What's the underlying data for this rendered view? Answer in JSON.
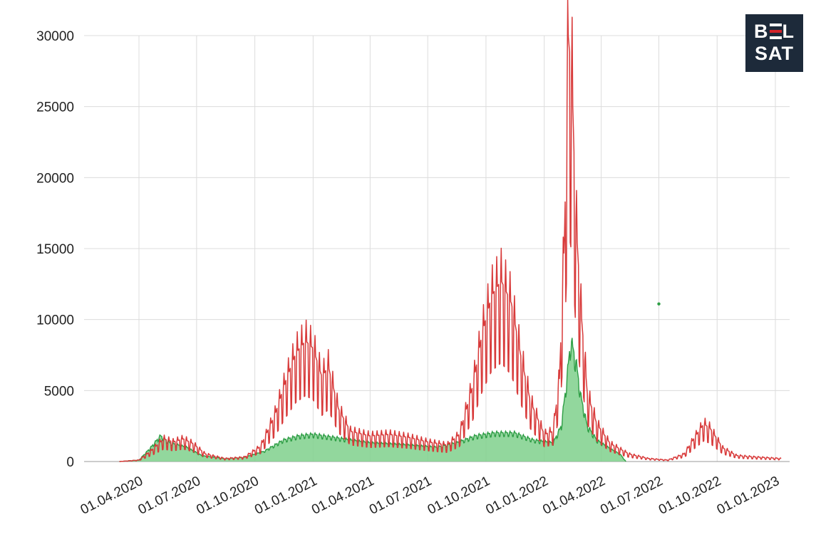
{
  "colors": {
    "red_series": "#d83a3a",
    "green_series": "#2e9e45",
    "green_fill": "#7fd08c",
    "grid": "#dcdcdc",
    "logo_bg": "#1d2a3a",
    "logo_accent": "#d2232a"
  },
  "logo": {
    "line1": "BELSAT",
    "line1_left": "B",
    "line1_right": "L",
    "line2": "SAT"
  },
  "chart_data": {
    "type": "area",
    "title": "",
    "xlabel": "",
    "ylabel": "",
    "ylim": [
      0,
      30000
    ],
    "yticks": [
      0,
      5000,
      10000,
      15000,
      20000,
      25000,
      30000
    ],
    "xticks": [
      "01.04.2020",
      "01.07.2020",
      "01.10.2020",
      "01.01.2021",
      "01.04.2021",
      "01.07.2021",
      "01.10.2021",
      "01.01.2022",
      "01.04.2022",
      "01.07.2022",
      "01.10.2022",
      "01.01.2023"
    ],
    "grid": true,
    "legend": "none",
    "series": [
      {
        "type": "line",
        "color": "#d83a3a",
        "points": [
          [
            "2020-03-01",
            0
          ],
          [
            "2020-04-01",
            100
          ],
          [
            "2020-04-20",
            700
          ],
          [
            "2020-05-10",
            1500
          ],
          [
            "2020-05-25",
            1300
          ],
          [
            "2020-06-10",
            1500
          ],
          [
            "2020-06-25",
            1200
          ],
          [
            "2020-07-15",
            500
          ],
          [
            "2020-08-15",
            200
          ],
          [
            "2020-09-15",
            300
          ],
          [
            "2020-10-10",
            1000
          ],
          [
            "2020-11-01",
            3000
          ],
          [
            "2020-11-20",
            5500
          ],
          [
            "2020-12-05",
            7200
          ],
          [
            "2020-12-20",
            8000
          ],
          [
            "2021-01-01",
            7500
          ],
          [
            "2021-01-15",
            5600
          ],
          [
            "2021-01-25",
            6300
          ],
          [
            "2021-02-10",
            3500
          ],
          [
            "2021-03-01",
            2000
          ],
          [
            "2021-04-01",
            1700
          ],
          [
            "2021-05-01",
            1800
          ],
          [
            "2021-06-01",
            1600
          ],
          [
            "2021-07-01",
            1300
          ],
          [
            "2021-08-01",
            1100
          ],
          [
            "2021-08-20",
            1800
          ],
          [
            "2021-09-10",
            5000
          ],
          [
            "2021-09-25",
            8500
          ],
          [
            "2021-10-10",
            11000
          ],
          [
            "2021-10-25",
            12000
          ],
          [
            "2021-11-10",
            10500
          ],
          [
            "2021-11-25",
            7000
          ],
          [
            "2021-12-10",
            4000
          ],
          [
            "2022-01-01",
            1800
          ],
          [
            "2022-01-15",
            2000
          ],
          [
            "2022-01-25",
            5500
          ],
          [
            "2022-02-02",
            15000
          ],
          [
            "2022-02-08",
            28200
          ],
          [
            "2022-02-14",
            25000
          ],
          [
            "2022-02-20",
            16000
          ],
          [
            "2022-02-28",
            10000
          ],
          [
            "2022-03-10",
            4500
          ],
          [
            "2022-03-25",
            2500
          ],
          [
            "2022-04-15",
            1200
          ],
          [
            "2022-05-15",
            500
          ],
          [
            "2022-06-15",
            200
          ],
          [
            "2022-07-15",
            100
          ],
          [
            "2022-08-10",
            500
          ],
          [
            "2022-08-25",
            1500
          ],
          [
            "2022-09-10",
            2500
          ],
          [
            "2022-09-20",
            2200
          ],
          [
            "2022-10-10",
            900
          ],
          [
            "2022-11-01",
            400
          ],
          [
            "2022-12-01",
            300
          ],
          [
            "2023-01-10",
            200
          ]
        ]
      },
      {
        "type": "area",
        "color": "#2e9e45",
        "fill": "#7fd08c",
        "points": [
          [
            "2020-03-01",
            0
          ],
          [
            "2020-04-01",
            100
          ],
          [
            "2020-04-20",
            1000
          ],
          [
            "2020-05-05",
            1800
          ],
          [
            "2020-05-20",
            1300
          ],
          [
            "2020-06-15",
            1000
          ],
          [
            "2020-07-10",
            400
          ],
          [
            "2020-08-15",
            200
          ],
          [
            "2020-09-15",
            300
          ],
          [
            "2020-10-15",
            700
          ],
          [
            "2020-11-15",
            1500
          ],
          [
            "2020-12-10",
            1800
          ],
          [
            "2021-01-01",
            1900
          ],
          [
            "2021-02-01",
            1700
          ],
          [
            "2021-03-01",
            1500
          ],
          [
            "2021-04-01",
            1300
          ],
          [
            "2021-05-15",
            1200
          ],
          [
            "2021-06-15",
            1100
          ],
          [
            "2021-07-15",
            1000
          ],
          [
            "2021-08-15",
            1300
          ],
          [
            "2021-09-15",
            1800
          ],
          [
            "2021-10-15",
            2000
          ],
          [
            "2021-11-15",
            2000
          ],
          [
            "2021-12-15",
            1500
          ],
          [
            "2022-01-15",
            1300
          ],
          [
            "2022-01-28",
            2500
          ],
          [
            "2022-02-05",
            5500
          ],
          [
            "2022-02-12",
            8500
          ],
          [
            "2022-02-20",
            7000
          ],
          [
            "2022-02-28",
            4500
          ],
          [
            "2022-03-10",
            2500
          ],
          [
            "2022-03-25",
            1500
          ],
          [
            "2022-04-15",
            900
          ],
          [
            "2022-05-01",
            500
          ],
          [
            "2022-05-10",
            0
          ]
        ],
        "outlier": [
          "2022-07-01",
          11100
        ]
      }
    ]
  }
}
